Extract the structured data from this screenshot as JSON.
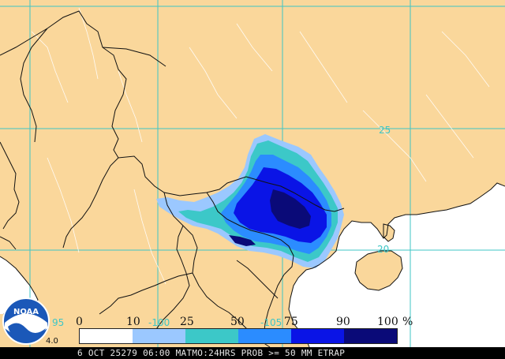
{
  "map": {
    "land_color": "#fad79b",
    "water_color": "#ffffff",
    "border_color": "#111111",
    "grid_color": "#3fc6c6",
    "grid_labels": [
      {
        "key": "lat_25",
        "text": "25"
      },
      {
        "key": "lat_20",
        "text": "20"
      },
      {
        "key": "lon_100",
        "text": "-100"
      },
      {
        "key": "lon_105",
        "text": "-105"
      },
      {
        "key": "lon_95",
        "text": "95"
      }
    ]
  },
  "probability_shades": [
    {
      "range": "0-10",
      "color": "#ffffff"
    },
    {
      "range": "10-25",
      "color": "#9bc8ff"
    },
    {
      "range": "25-50",
      "color": "#3cc8c8"
    },
    {
      "range": "50-75",
      "color": "#2b8cff"
    },
    {
      "range": "75-90",
      "color": "#0a14e6"
    },
    {
      "range": "90-100",
      "color": "#0a0a78"
    }
  ],
  "legend": {
    "tick_labels": [
      "0",
      "10",
      "25",
      "50",
      "75",
      "90",
      "100",
      "%"
    ]
  },
  "logo": {
    "text": "NOAA",
    "partial_label": "4.0"
  },
  "footer": {
    "text": "6 OCT 25279 06:00 MATMO:24HRS PROB >= 50 MM ETRAP"
  }
}
